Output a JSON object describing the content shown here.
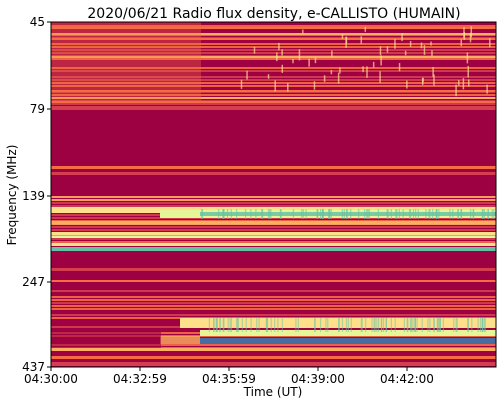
{
  "chart_data": {
    "type": "heatmap",
    "title": "2020/06/21  Radio flux density, e-CALLISTO (HUMAIN)",
    "xlabel": "Time (UT)",
    "ylabel": "Frequency (MHz)",
    "x_tick_labels": [
      "04:30:00",
      "04:32:59",
      "04:35:59",
      "04:39:00",
      "04:42:00"
    ],
    "y_tick_labels": [
      "45",
      "79",
      "139",
      "247",
      "437"
    ],
    "y_ticks_mhz": [
      45,
      79,
      139,
      247,
      437
    ],
    "x_ticks_minutes_after_0430": [
      0,
      2.98,
      5.98,
      9.0,
      12.0
    ],
    "x_range_minutes": [
      0,
      15.5
    ],
    "y_range_mhz": [
      45,
      437
    ],
    "colormap": "Spectral (red-yellow-green-blue)",
    "colors": {
      "low": "#9e0142",
      "mid_low": "#d53e4f",
      "mid": "#f46d43",
      "mid_high": "#fdae61",
      "high": "#fee08b",
      "very_high": "#e6f598",
      "peak": "#66c2a5",
      "max": "#3288bd"
    }
  }
}
